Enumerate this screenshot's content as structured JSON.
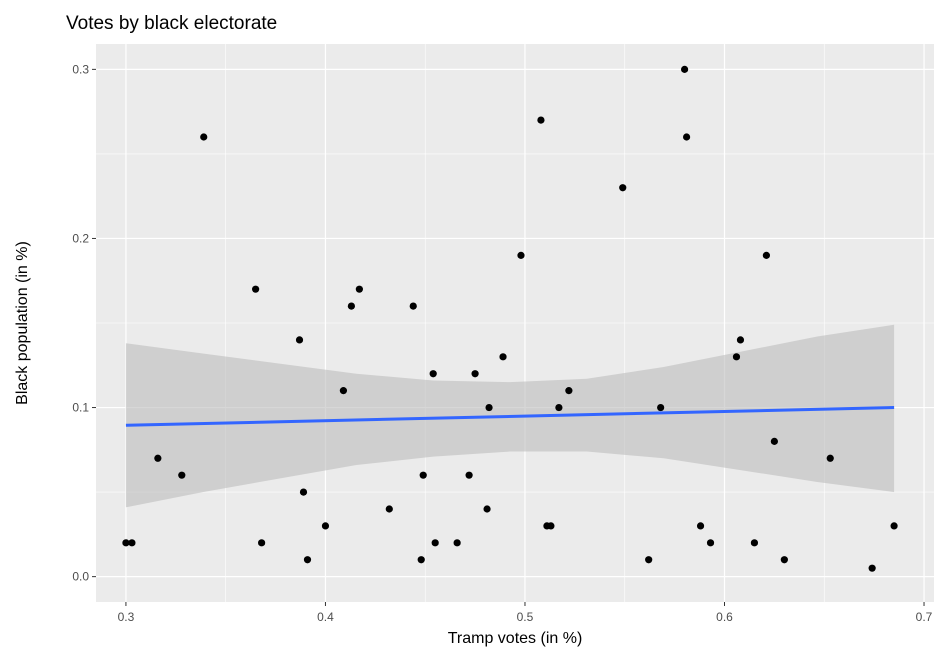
{
  "chart_data": {
    "type": "scatter",
    "title": "Votes by black electorate",
    "xlabel": "Tramp votes (in %)",
    "ylabel": "Black population (in %)",
    "xlim": [
      0.285,
      0.705
    ],
    "ylim": [
      -0.015,
      0.315
    ],
    "x_ticks": [
      0.3,
      0.4,
      0.5,
      0.6,
      0.7
    ],
    "x_tick_labels": [
      "0.3",
      "0.4",
      "0.5",
      "0.6",
      "0.7"
    ],
    "y_ticks": [
      0.0,
      0.1,
      0.2,
      0.3
    ],
    "y_tick_labels": [
      "0.0",
      "0.1",
      "0.2",
      "0.3"
    ],
    "grid": true,
    "colors": {
      "panel_background": "#ebebeb",
      "grid": "#ffffff",
      "points": "#000000",
      "trend_line": "#3366ff",
      "confidence_band": "#bdbdbd"
    },
    "points": [
      {
        "x": 0.3,
        "y": 0.02
      },
      {
        "x": 0.303,
        "y": 0.02
      },
      {
        "x": 0.316,
        "y": 0.07
      },
      {
        "x": 0.328,
        "y": 0.06
      },
      {
        "x": 0.339,
        "y": 0.26
      },
      {
        "x": 0.365,
        "y": 0.17
      },
      {
        "x": 0.368,
        "y": 0.02
      },
      {
        "x": 0.387,
        "y": 0.14
      },
      {
        "x": 0.389,
        "y": 0.05
      },
      {
        "x": 0.391,
        "y": 0.01
      },
      {
        "x": 0.4,
        "y": 0.03
      },
      {
        "x": 0.409,
        "y": 0.11
      },
      {
        "x": 0.413,
        "y": 0.16
      },
      {
        "x": 0.417,
        "y": 0.17
      },
      {
        "x": 0.432,
        "y": 0.04
      },
      {
        "x": 0.444,
        "y": 0.16
      },
      {
        "x": 0.448,
        "y": 0.01
      },
      {
        "x": 0.449,
        "y": 0.06
      },
      {
        "x": 0.454,
        "y": 0.12
      },
      {
        "x": 0.455,
        "y": 0.02
      },
      {
        "x": 0.466,
        "y": 0.02
      },
      {
        "x": 0.472,
        "y": 0.06
      },
      {
        "x": 0.475,
        "y": 0.12
      },
      {
        "x": 0.481,
        "y": 0.04
      },
      {
        "x": 0.482,
        "y": 0.1
      },
      {
        "x": 0.489,
        "y": 0.13
      },
      {
        "x": 0.498,
        "y": 0.19
      },
      {
        "x": 0.508,
        "y": 0.27
      },
      {
        "x": 0.511,
        "y": 0.03
      },
      {
        "x": 0.513,
        "y": 0.03
      },
      {
        "x": 0.517,
        "y": 0.1
      },
      {
        "x": 0.522,
        "y": 0.11
      },
      {
        "x": 0.549,
        "y": 0.23
      },
      {
        "x": 0.562,
        "y": 0.01
      },
      {
        "x": 0.568,
        "y": 0.1
      },
      {
        "x": 0.58,
        "y": 0.3
      },
      {
        "x": 0.581,
        "y": 0.26
      },
      {
        "x": 0.588,
        "y": 0.03
      },
      {
        "x": 0.593,
        "y": 0.02
      },
      {
        "x": 0.606,
        "y": 0.13
      },
      {
        "x": 0.608,
        "y": 0.14
      },
      {
        "x": 0.615,
        "y": 0.02
      },
      {
        "x": 0.621,
        "y": 0.19
      },
      {
        "x": 0.625,
        "y": 0.08
      },
      {
        "x": 0.63,
        "y": 0.01
      },
      {
        "x": 0.653,
        "y": 0.07
      },
      {
        "x": 0.674,
        "y": 0.005
      },
      {
        "x": 0.685,
        "y": 0.03
      }
    ],
    "trend_line": {
      "x": [
        0.3,
        0.685
      ],
      "y": [
        0.0895,
        0.1
      ]
    },
    "confidence_band": {
      "x": [
        0.3,
        0.3385,
        0.377,
        0.4155,
        0.454,
        0.4925,
        0.531,
        0.5695,
        0.608,
        0.6465,
        0.685
      ],
      "lower": [
        0.041,
        0.05,
        0.058,
        0.066,
        0.071,
        0.074,
        0.074,
        0.07,
        0.063,
        0.056,
        0.05
      ],
      "upper": [
        0.138,
        0.132,
        0.126,
        0.12,
        0.116,
        0.115,
        0.117,
        0.124,
        0.133,
        0.142,
        0.149
      ]
    }
  }
}
